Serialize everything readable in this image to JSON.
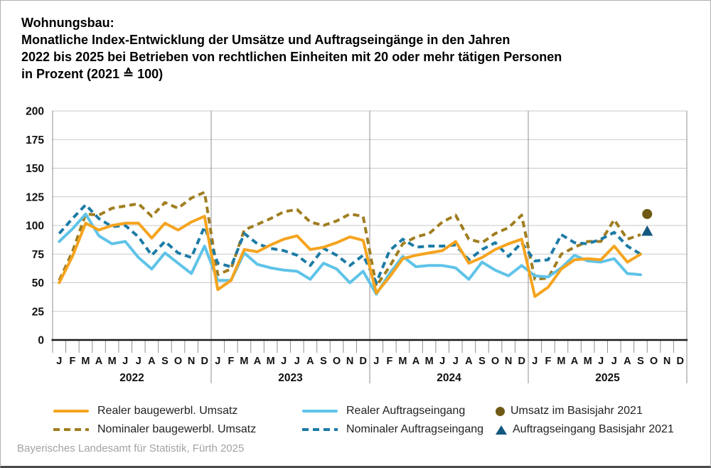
{
  "title": {
    "lines": [
      "Wohnungsbau:",
      "Monatliche Index-Entwicklung der Umsätze und Auftragseingänge in den Jahren",
      "2022 bis 2025 bei Betrieben von rechtlichen Einheiten mit 20 oder mehr tätigen Personen",
      "in Prozent (2021 ≙ 100)"
    ]
  },
  "legend": {
    "items": [
      {
        "label": "Realer baugewerbl. Umsatz",
        "type": "line",
        "color": "#F5A41F"
      },
      {
        "label": "Nominaler baugewerbl. Umsatz",
        "type": "dash",
        "color": "#A07E20"
      },
      {
        "label": "Realer Auftragseingang",
        "type": "line",
        "color": "#5FC3E8"
      },
      {
        "label": "Nominaler Auftragseingang",
        "type": "dash",
        "color": "#1C7BA5"
      },
      {
        "label": "Umsatz im Basisjahr 2021",
        "type": "dot",
        "color": "#6E5A15"
      },
      {
        "label": "Auftragseingang Basisjahr 2021",
        "type": "triangle",
        "color": "#14577E"
      }
    ]
  },
  "footer": {
    "source": "Bayerisches Landesamt für Statistik, Fürth 2025"
  },
  "colors": {
    "real_umsatz": "#F5A41F",
    "nominal_umsatz": "#A07E20",
    "real_auftrag": "#5FC3E8",
    "nominal_auftrag": "#1C7BA5",
    "marker_umsatz": "#6E5A15",
    "marker_auftrag": "#14577E",
    "gridline": "#c9c9c9",
    "divider": "#8f8f8f",
    "axis": "#1a1a1a"
  },
  "chart_data": {
    "type": "line",
    "title": "Wohnungsbau: Monatliche Index-Entwicklung der Umsätze und Auftragseingänge 2022–2025, in Prozent (2021 ≙ 100)",
    "ylim": [
      0,
      200
    ],
    "y_ticks": [
      0,
      25,
      50,
      75,
      100,
      125,
      150,
      175,
      200
    ],
    "grid": true,
    "month_letters": [
      "J",
      "F",
      "M",
      "A",
      "M",
      "J",
      "J",
      "A",
      "S",
      "O",
      "N",
      "D"
    ],
    "years": [
      "2022",
      "2023",
      "2024",
      "2025"
    ],
    "series": [
      {
        "name": "Realer baugewerbl. Umsatz",
        "style": "solid",
        "color": "#F5A41F",
        "values": [
          50,
          73,
          102,
          96,
          100,
          102,
          102,
          89,
          102,
          96,
          103,
          108,
          44,
          52,
          79,
          77,
          83,
          88,
          91,
          79,
          81,
          85,
          90,
          87,
          41,
          55,
          71,
          74,
          76,
          78,
          86,
          67,
          72,
          79,
          84,
          88,
          38,
          46,
          62,
          70,
          71,
          70,
          82,
          68,
          75
        ]
      },
      {
        "name": "Nominaler baugewerbl. Umsatz",
        "style": "dashed",
        "color": "#A07E20",
        "values": [
          52,
          77,
          110,
          109,
          115,
          117,
          119,
          108,
          120,
          115,
          124,
          129,
          57,
          62,
          96,
          101,
          106,
          112,
          114,
          103,
          100,
          104,
          110,
          108,
          47,
          64,
          84,
          90,
          93,
          103,
          109,
          88,
          85,
          93,
          98,
          109,
          53,
          54,
          75,
          81,
          86,
          86,
          105,
          88,
          92
        ]
      },
      {
        "name": "Realer Auftragseingang",
        "style": "solid",
        "color": "#5FC3E8",
        "values": [
          86,
          97,
          110,
          91,
          84,
          86,
          72,
          62,
          76,
          67,
          58,
          82,
          52,
          52,
          76,
          66,
          63,
          61,
          60,
          53,
          67,
          62,
          50,
          60,
          40,
          58,
          73,
          64,
          65,
          65,
          63,
          53,
          68,
          61,
          56,
          65,
          56,
          55,
          63,
          74,
          69,
          68,
          71,
          58,
          57
        ]
      },
      {
        "name": "Nominaler Auftragseingang",
        "style": "dashed",
        "color": "#1C7BA5",
        "values": [
          93,
          106,
          118,
          106,
          99,
          100,
          90,
          74,
          86,
          76,
          72,
          99,
          67,
          64,
          93,
          84,
          80,
          78,
          74,
          65,
          80,
          74,
          65,
          74,
          50,
          78,
          88,
          81,
          82,
          82,
          83,
          70,
          79,
          85,
          73,
          85,
          69,
          70,
          92,
          85,
          84,
          88,
          94,
          82,
          75
        ]
      }
    ],
    "markers": [
      {
        "name": "Umsatz im Basisjahr 2021",
        "shape": "circle",
        "color": "#6E5A15",
        "value": 110,
        "month_index": 44.5
      },
      {
        "name": "Auftragseingang Basisjahr 2021",
        "shape": "triangle",
        "color": "#14577E",
        "value": 95,
        "month_index": 44.5
      }
    ]
  }
}
